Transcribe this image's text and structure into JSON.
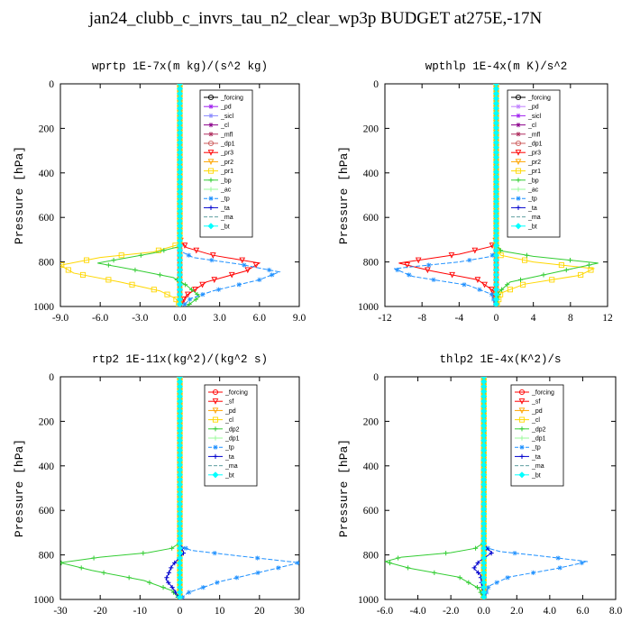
{
  "title": "jan24_clubb_c_invrs_tau_n2_clear_wp3p  BUDGET at275E,-17N",
  "chart_data": [
    {
      "type": "line",
      "title": "wprtp   1E-7x(m kg)/(s^2 kg)",
      "ylabel": "Pressure [hPa]",
      "xlim": [
        -9,
        9
      ],
      "ylim": [
        1000,
        0
      ],
      "xticks": [
        "-9.0",
        "-6.0",
        "-3.0",
        "0.0",
        "3.0",
        "6.0",
        "9.0"
      ],
      "xtick_values": [
        -9,
        -6,
        -3,
        0,
        3,
        6,
        9
      ],
      "yticks": [
        0,
        200,
        400,
        600,
        800,
        1000
      ],
      "grid": false,
      "legend_position": "top-right",
      "series": [
        {
          "name": "_forcing",
          "color": "#000000",
          "marker": "circle",
          "x": [
            0,
            0,
            0,
            0,
            0,
            0,
            0,
            0
          ],
          "y": [
            0,
            150,
            300,
            450,
            600,
            750,
            850,
            1000
          ]
        },
        {
          "name": "_pd",
          "color": "#a020f0",
          "marker": "star",
          "x": [
            0,
            0
          ],
          "y": [
            0,
            1000
          ]
        },
        {
          "name": "_sicl",
          "color": "#8888ff",
          "marker": "star",
          "x": [
            0,
            0
          ],
          "y": [
            0,
            1000
          ]
        },
        {
          "name": "_cl",
          "color": "#8b008b",
          "marker": "star",
          "x": [
            0,
            0
          ],
          "y": [
            0,
            1000
          ]
        },
        {
          "name": "_mfl",
          "color": "#b03060",
          "marker": "star",
          "x": [
            0,
            0
          ],
          "y": [
            0,
            1000
          ]
        },
        {
          "name": "_dp1",
          "color": "#cd5c5c",
          "marker": "circle",
          "x": [
            0,
            0
          ],
          "y": [
            0,
            1000
          ]
        },
        {
          "name": "_pr3",
          "color": "#ff0000",
          "marker": "triangle",
          "x": [
            0,
            0,
            0.5,
            2.5,
            6.0,
            5.0,
            2.0,
            0.5,
            0
          ],
          "y": [
            0,
            700,
            735,
            770,
            805,
            840,
            890,
            950,
            1000
          ]
        },
        {
          "name": "_pr2",
          "color": "#ffa500",
          "marker": "triangle",
          "x": [
            0,
            0
          ],
          "y": [
            0,
            1000
          ]
        },
        {
          "name": "_pr1",
          "color": "#ffd700",
          "marker": "square",
          "x": [
            0,
            0,
            -2.0,
            -6.0,
            -9.0,
            -8.0,
            -4.5,
            -1.5,
            -0.3,
            0
          ],
          "y": [
            0,
            720,
            755,
            780,
            815,
            850,
            890,
            930,
            965,
            1000
          ]
        },
        {
          "name": "_bp",
          "color": "#32cd32",
          "marker": "plus",
          "x": [
            0,
            0,
            -2.0,
            -6.2,
            -3.0,
            -0.5,
            0.5,
            1.5,
            0.5
          ],
          "y": [
            0,
            730,
            760,
            805,
            840,
            870,
            905,
            955,
            1000
          ]
        },
        {
          "name": "_ac",
          "color": "#98fb98",
          "marker": "plus",
          "x": [
            0,
            0
          ],
          "y": [
            0,
            1000
          ]
        },
        {
          "name": "_tp",
          "color": "#1e90ff",
          "marker": "star",
          "dash": true,
          "x": [
            0,
            0,
            1.0,
            4.5,
            7.5,
            6.0,
            2.5,
            0.8,
            0.2
          ],
          "y": [
            0,
            750,
            780,
            810,
            845,
            880,
            930,
            965,
            1000
          ]
        },
        {
          "name": "_ta",
          "color": "#0000cd",
          "marker": "plus",
          "x": [
            0,
            0
          ],
          "y": [
            0,
            1000
          ]
        },
        {
          "name": "_ma",
          "color": "#5f9ea0",
          "marker": "none",
          "dash": true,
          "x": [
            0,
            0
          ],
          "y": [
            0,
            1000
          ]
        },
        {
          "name": "_bt",
          "color": "#00ffff",
          "marker": "diamond",
          "x": [
            0,
            0
          ],
          "y": [
            0,
            1000
          ]
        }
      ]
    },
    {
      "type": "line",
      "title": "wpthlp   1E-4x(m K)/s^2",
      "ylabel": "Pressure [hPa]",
      "xlim": [
        -12,
        12
      ],
      "ylim": [
        1000,
        0
      ],
      "xticks": [
        "-12",
        "-8",
        "-4",
        "0",
        "4",
        "8",
        "12"
      ],
      "xtick_values": [
        -12,
        -8,
        -4,
        0,
        4,
        8,
        12
      ],
      "yticks": [
        0,
        200,
        400,
        600,
        800,
        1000
      ],
      "grid": false,
      "legend_position": "top-right",
      "series": [
        {
          "name": "_forcing",
          "color": "#000000",
          "marker": "circle",
          "x": [
            0,
            0
          ],
          "y": [
            0,
            1000
          ]
        },
        {
          "name": "_pd",
          "color": "#c080ff",
          "marker": "star",
          "x": [
            0,
            0
          ],
          "y": [
            0,
            1000
          ]
        },
        {
          "name": "_sicl",
          "color": "#a020f0",
          "marker": "star",
          "x": [
            0,
            0
          ],
          "y": [
            0,
            1000
          ]
        },
        {
          "name": "_cl",
          "color": "#8b008b",
          "marker": "star",
          "x": [
            0,
            0
          ],
          "y": [
            0,
            1000
          ]
        },
        {
          "name": "_mfl",
          "color": "#b03060",
          "marker": "star",
          "x": [
            0,
            0
          ],
          "y": [
            0,
            1000
          ]
        },
        {
          "name": "_dp1",
          "color": "#cd5c5c",
          "marker": "circle",
          "x": [
            0,
            0
          ],
          "y": [
            0,
            1000
          ]
        },
        {
          "name": "_pr3",
          "color": "#ff0000",
          "marker": "triangle",
          "x": [
            0,
            0,
            -0.5,
            -4.0,
            -10.5,
            -7.0,
            -2.0,
            -0.3,
            0
          ],
          "y": [
            0,
            700,
            730,
            765,
            805,
            840,
            880,
            930,
            1000
          ]
        },
        {
          "name": "_pr2",
          "color": "#ffa500",
          "marker": "triangle",
          "x": [
            0,
            0
          ],
          "y": [
            0,
            1000
          ]
        },
        {
          "name": "_pr1",
          "color": "#ffd700",
          "marker": "square",
          "x": [
            0,
            0,
            0.5,
            4.0,
            10.5,
            9.0,
            3.0,
            0.5,
            0
          ],
          "y": [
            0,
            740,
            770,
            800,
            830,
            860,
            900,
            940,
            1000
          ]
        },
        {
          "name": "_bp",
          "color": "#32cd32",
          "marker": "plus",
          "x": [
            0,
            0,
            0.5,
            4.0,
            11.0,
            6.0,
            1.5,
            0.3,
            0
          ],
          "y": [
            0,
            720,
            750,
            775,
            805,
            850,
            890,
            935,
            1000
          ]
        },
        {
          "name": "_ac",
          "color": "#98fb98",
          "marker": "plus",
          "x": [
            0,
            0
          ],
          "y": [
            0,
            1000
          ]
        },
        {
          "name": "_tp",
          "color": "#1e90ff",
          "marker": "star",
          "dash": true,
          "x": [
            0,
            0,
            -0.5,
            -4.0,
            -11.0,
            -9.0,
            -3.0,
            -0.5,
            0
          ],
          "y": [
            0,
            745,
            775,
            800,
            830,
            865,
            905,
            945,
            1000
          ]
        },
        {
          "name": "_ta",
          "color": "#0000cd",
          "marker": "plus",
          "x": [
            0,
            0
          ],
          "y": [
            0,
            1000
          ]
        },
        {
          "name": "_ma",
          "color": "#5f9ea0",
          "marker": "none",
          "dash": true,
          "x": [
            0,
            0
          ],
          "y": [
            0,
            1000
          ]
        },
        {
          "name": "_bt",
          "color": "#00ffff",
          "marker": "diamond",
          "x": [
            0,
            0
          ],
          "y": [
            0,
            1000
          ]
        }
      ]
    },
    {
      "type": "line",
      "title": "rtp2   1E-11x(kg^2)/(kg^2 s)",
      "ylabel": "Pressure [hPa]",
      "xlim": [
        -30,
        30
      ],
      "ylim": [
        1000,
        0
      ],
      "xticks": [
        "-30",
        "-20",
        "-10",
        "0",
        "10",
        "20",
        "30"
      ],
      "xtick_values": [
        -30,
        -20,
        -10,
        0,
        10,
        20,
        30
      ],
      "yticks": [
        0,
        200,
        400,
        600,
        800,
        1000
      ],
      "grid": false,
      "legend_position": "top-right",
      "series": [
        {
          "name": "_forcing",
          "color": "#ff0000",
          "marker": "circle",
          "x": [
            0,
            0
          ],
          "y": [
            0,
            1000
          ]
        },
        {
          "name": "_sf",
          "color": "#ff0000",
          "marker": "triangle",
          "x": [
            0,
            0
          ],
          "y": [
            0,
            1000
          ]
        },
        {
          "name": "_pd",
          "color": "#ffa500",
          "marker": "triangle",
          "x": [
            0,
            0
          ],
          "y": [
            0,
            1000
          ]
        },
        {
          "name": "_cl",
          "color": "#ffd700",
          "marker": "square",
          "x": [
            0,
            0
          ],
          "y": [
            0,
            1000
          ]
        },
        {
          "name": "_dp2",
          "color": "#32cd32",
          "marker": "plus",
          "x": [
            0,
            0,
            -2.0,
            -8.0,
            -20.0,
            -30.0,
            -22.0,
            -9.0,
            -2.0,
            0
          ],
          "y": [
            0,
            745,
            770,
            790,
            810,
            835,
            870,
            915,
            960,
            1000
          ]
        },
        {
          "name": "_dp1",
          "color": "#98fb98",
          "marker": "plus",
          "x": [
            0,
            0
          ],
          "y": [
            0,
            1000
          ]
        },
        {
          "name": "_tp",
          "color": "#1e90ff",
          "marker": "star",
          "dash": true,
          "x": [
            0,
            0,
            3.0,
            15.0,
            30.0,
            22.0,
            10.0,
            2.0,
            0
          ],
          "y": [
            0,
            760,
            780,
            805,
            835,
            870,
            920,
            970,
            1000
          ]
        },
        {
          "name": "_ta",
          "color": "#0000cd",
          "marker": "plus",
          "x": [
            0,
            0,
            1.0,
            -2.0,
            -3.5,
            -1.5,
            0
          ],
          "y": [
            0,
            750,
            790,
            850,
            910,
            955,
            1000
          ]
        },
        {
          "name": "_ma",
          "color": "#5f9ea0",
          "marker": "none",
          "dash": true,
          "x": [
            0,
            0
          ],
          "y": [
            0,
            1000
          ]
        },
        {
          "name": "_bt",
          "color": "#00ffff",
          "marker": "diamond",
          "x": [
            0,
            0
          ],
          "y": [
            0,
            1000
          ]
        }
      ]
    },
    {
      "type": "line",
      "title": "thlp2   1E-4x(K^2)/s",
      "ylabel": "Pressure [hPa]",
      "xlim": [
        -6,
        8
      ],
      "ylim": [
        1000,
        0
      ],
      "xticks": [
        "-6.0",
        "-4.0",
        "-2.0",
        "0.0",
        "2.0",
        "4.0",
        "6.0",
        "8.0"
      ],
      "xtick_values": [
        -6,
        -4,
        -2,
        0,
        2,
        4,
        6,
        8
      ],
      "yticks": [
        0,
        200,
        400,
        600,
        800,
        1000
      ],
      "grid": false,
      "legend_position": "top-right",
      "series": [
        {
          "name": "_forcing",
          "color": "#ff0000",
          "marker": "circle",
          "x": [
            0,
            0
          ],
          "y": [
            0,
            1000
          ]
        },
        {
          "name": "_sf",
          "color": "#ff0000",
          "marker": "triangle",
          "x": [
            0,
            0
          ],
          "y": [
            0,
            1000
          ]
        },
        {
          "name": "_pd",
          "color": "#ffa500",
          "marker": "triangle",
          "x": [
            0,
            0
          ],
          "y": [
            0,
            1000
          ]
        },
        {
          "name": "_cl",
          "color": "#ffd700",
          "marker": "square",
          "x": [
            0,
            0
          ],
          "y": [
            0,
            1000
          ]
        },
        {
          "name": "_dp2",
          "color": "#32cd32",
          "marker": "plus",
          "x": [
            0,
            0,
            -0.5,
            -2.0,
            -5.0,
            -6.0,
            -4.5,
            -1.5,
            -0.3,
            0
          ],
          "y": [
            0,
            745,
            770,
            790,
            810,
            830,
            860,
            900,
            950,
            1000
          ]
        },
        {
          "name": "_dp1",
          "color": "#98fb98",
          "marker": "plus",
          "x": [
            0,
            0
          ],
          "y": [
            0,
            1000
          ]
        },
        {
          "name": "_tp",
          "color": "#1e90ff",
          "marker": "star",
          "dash": true,
          "x": [
            0,
            0,
            1.0,
            3.5,
            6.3,
            4.5,
            1.5,
            0.3,
            0
          ],
          "y": [
            0,
            765,
            785,
            805,
            830,
            860,
            900,
            940,
            1000
          ]
        },
        {
          "name": "_ta",
          "color": "#0000cd",
          "marker": "plus",
          "x": [
            0,
            0,
            0.5,
            -0.3,
            -0.6,
            -0.2,
            0
          ],
          "y": [
            0,
            760,
            790,
            830,
            860,
            890,
            1000
          ]
        },
        {
          "name": "_ma",
          "color": "#5f9ea0",
          "marker": "none",
          "dash": true,
          "x": [
            0,
            0
          ],
          "y": [
            0,
            1000
          ]
        },
        {
          "name": "_bt",
          "color": "#00ffff",
          "marker": "diamond",
          "x": [
            0,
            0
          ],
          "y": [
            0,
            1000
          ]
        }
      ]
    }
  ]
}
